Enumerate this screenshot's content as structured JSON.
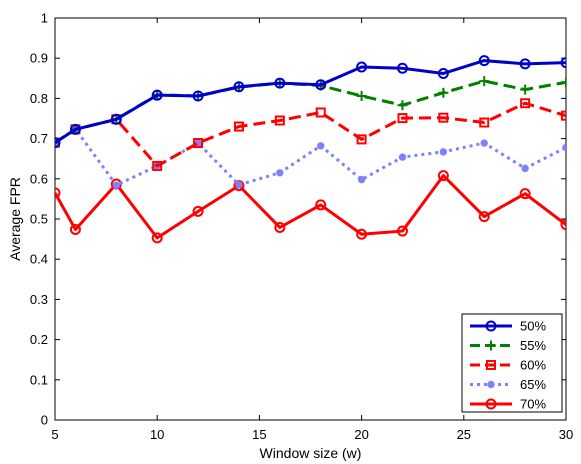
{
  "chart_data": {
    "type": "line",
    "title": "",
    "xlabel": "Window size (w)",
    "ylabel": "Average FPR",
    "xlim": [
      5,
      30
    ],
    "ylim": [
      0,
      1
    ],
    "xticks": [
      5,
      10,
      15,
      20,
      25,
      30
    ],
    "yticks": [
      0,
      0.1,
      0.2,
      0.3,
      0.4,
      0.5,
      0.6,
      0.7,
      0.8,
      0.9,
      1
    ],
    "grid": false,
    "legend_position": "bottom-right",
    "x": [
      5,
      6,
      8,
      10,
      12,
      14,
      16,
      18,
      20,
      22,
      24,
      26,
      28,
      30
    ],
    "series": [
      {
        "name": "50%",
        "color": "#0000cc",
        "dash": "solid",
        "marker": "circle-open",
        "values": [
          0.69,
          0.723,
          0.748,
          0.808,
          0.806,
          0.829,
          0.838,
          0.834,
          0.878,
          0.875,
          0.862,
          0.894,
          0.886,
          0.889
        ]
      },
      {
        "name": "55%",
        "color": "#008000",
        "dash": "dashed",
        "marker": "plus",
        "values": [
          0.69,
          0.723,
          0.748,
          0.809,
          0.806,
          0.828,
          0.838,
          0.832,
          0.806,
          0.783,
          0.814,
          0.843,
          0.822,
          0.84
        ]
      },
      {
        "name": "60%",
        "color": "#ff0000",
        "dash": "dashed",
        "marker": "square-open",
        "values": [
          0.69,
          0.723,
          0.748,
          0.632,
          0.689,
          0.73,
          0.745,
          0.765,
          0.698,
          0.751,
          0.752,
          0.74,
          0.788,
          0.757
        ]
      },
      {
        "name": "65%",
        "color": "#8080ff",
        "dash": "dotted",
        "marker": "dot",
        "values": [
          0.69,
          0.724,
          0.584,
          0.632,
          0.689,
          0.585,
          0.615,
          0.682,
          0.598,
          0.654,
          0.667,
          0.689,
          0.626,
          0.678
        ]
      },
      {
        "name": "70%",
        "color": "#ff0000",
        "dash": "solid",
        "marker": "circle-open",
        "values": [
          0.565,
          0.474,
          0.587,
          0.453,
          0.519,
          0.583,
          0.479,
          0.535,
          0.462,
          0.47,
          0.608,
          0.506,
          0.563,
          0.486
        ]
      }
    ]
  }
}
